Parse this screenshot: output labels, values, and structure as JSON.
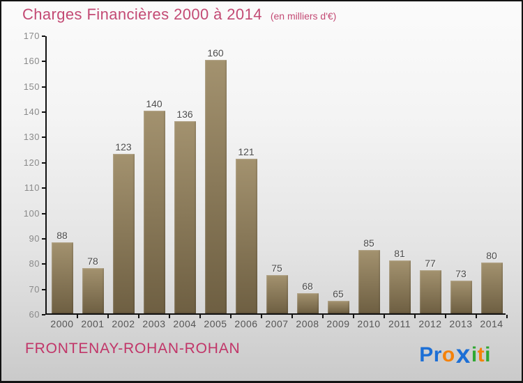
{
  "header": {
    "title": "Charges Financières 2000 à 2014",
    "subtitle": "(en milliers d'€)"
  },
  "footer": {
    "municipality": "FRONTENAY-ROHAN-ROHAN"
  },
  "logo": {
    "name": "Proxiti",
    "letters": [
      {
        "ch": "P",
        "color": "#1c6fd6",
        "big": false
      },
      {
        "ch": "r",
        "color": "#1c6fd6",
        "big": false
      },
      {
        "ch": "o",
        "color": "#f5820a",
        "big": false
      },
      {
        "ch": "x",
        "color": "#1c6fd6",
        "big": true
      },
      {
        "ch": "i",
        "color": "#2fa832",
        "big": false
      },
      {
        "ch": "t",
        "color": "#f5820a",
        "big": false
      },
      {
        "ch": "i",
        "color": "#2fa832",
        "big": false
      }
    ]
  },
  "colors": {
    "title_pink": "#c34a74",
    "footer_pink": "#c13568",
    "bar_gradient_top": "#a3926f",
    "bar_gradient_bottom": "#6e5f42",
    "axis": "#111111",
    "value_label": "#4c4c4c",
    "tick_label": "#8a8a8a",
    "year_label": "#555555",
    "background_top": "#fbfbfb",
    "background_bottom": "#cacaca",
    "border": "#131313"
  },
  "chart_data": {
    "type": "bar",
    "title": "Charges Financières 2000 à 2014",
    "subtitle": "(en milliers d'€)",
    "categories": [
      "2000",
      "2001",
      "2002",
      "2003",
      "2004",
      "2005",
      "2006",
      "2007",
      "2008",
      "2009",
      "2010",
      "2011",
      "2012",
      "2013",
      "2014"
    ],
    "values": [
      88,
      78,
      123,
      140,
      136,
      160,
      121,
      75,
      68,
      65,
      85,
      81,
      77,
      73,
      80
    ],
    "ylim": [
      60,
      170
    ],
    "ytick_step": 10,
    "grid": false,
    "legend": null,
    "bar_value_labels_shown": true
  }
}
